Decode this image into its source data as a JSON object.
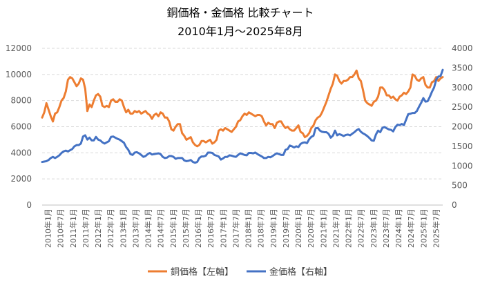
{
  "chart_data": {
    "type": "line",
    "title_line1": "銅価格・金価格 比較チャート",
    "title_line2": "2010年1月～2025年8月",
    "y_left": {
      "min": 0,
      "max": 12000,
      "ticks": [
        0,
        2000,
        4000,
        6000,
        8000,
        10000,
        12000
      ]
    },
    "y_right": {
      "min": 0,
      "max": 4000,
      "ticks": [
        0,
        500,
        1000,
        1500,
        2000,
        2500,
        3000,
        3500,
        4000
      ]
    },
    "x_labels": [
      "2010年1月",
      "2010年7月",
      "2011年1月",
      "2011年7月",
      "2012年1月",
      "2012年7月",
      "2013年1月",
      "2013年7月",
      "2014年1月",
      "2014年7月",
      "2015年1月",
      "2015年7月",
      "2016年1月",
      "2016年7月",
      "2017年1月",
      "2017年7月",
      "2018年1月",
      "2018年7月",
      "2019年1月",
      "2019年7月",
      "2020年1月",
      "2020年7月",
      "2021年1月",
      "2021年7月",
      "2022年1月",
      "2022年7月",
      "2023年1月",
      "2023年7月",
      "2024年1月",
      "2024年7月",
      "2025年1月",
      "2025年7月"
    ],
    "grid": true,
    "legend_position": "bottom",
    "series": [
      {
        "name": "銅価格【左軸】",
        "axis": "left",
        "color": "#ED7D31",
        "values": [
          6700,
          7100,
          7800,
          7300,
          6800,
          6400,
          7000,
          7100,
          7500,
          8000,
          8200,
          8700,
          9600,
          9800,
          9700,
          9400,
          9100,
          9300,
          9700,
          9600,
          8900,
          7200,
          7700,
          7500,
          8000,
          8400,
          8500,
          8300,
          7600,
          7500,
          7600,
          7500,
          8000,
          8100,
          7900,
          7900,
          8100,
          8000,
          7500,
          7100,
          7300,
          7000,
          7000,
          7200,
          7100,
          7200,
          7000,
          7100,
          7200,
          7000,
          6900,
          6600,
          6900,
          7000,
          6800,
          7100,
          7000,
          6700,
          6700,
          6400,
          5800,
          5700,
          6000,
          6200,
          6200,
          5500,
          5300,
          5000,
          5100,
          5200,
          4800,
          4600,
          4500,
          4600,
          4900,
          4900,
          4800,
          4900,
          5000,
          4700,
          4800,
          5000,
          5700,
          5800,
          5700,
          5900,
          5800,
          5700,
          5600,
          5800,
          6000,
          6400,
          6500,
          6800,
          7000,
          6900,
          7100,
          7000,
          6900,
          6800,
          6900,
          6900,
          6800,
          6400,
          6100,
          6300,
          6200,
          6200,
          5900,
          6300,
          6400,
          6400,
          6100,
          5900,
          6000,
          5800,
          5700,
          5700,
          5900,
          6100,
          5600,
          5500,
          5200,
          5300,
          5500,
          5900,
          6100,
          6500,
          6700,
          6800,
          7100,
          7500,
          7900,
          8400,
          8900,
          9300,
          10000,
          9900,
          9500,
          9300,
          9500,
          9500,
          9600,
          9800,
          9800,
          10000,
          10300,
          9700,
          9500,
          8800,
          8000,
          7800,
          7700,
          7600,
          7900,
          8000,
          8300,
          9000,
          9000,
          8800,
          8400,
          8400,
          8200,
          8300,
          8100,
          8000,
          8300,
          8400,
          8600,
          8500,
          8700,
          9000,
          10000,
          9900,
          9600,
          9500,
          9700,
          9800,
          9200,
          9000,
          9000,
          9400,
          9500,
          9800,
          9500,
          9700,
          9800
        ]
      },
      {
        "name": "金価格【右軸】",
        "axis": "right",
        "color": "#4472C4",
        "values": [
          1100,
          1110,
          1120,
          1150,
          1200,
          1230,
          1200,
          1230,
          1270,
          1330,
          1370,
          1390,
          1370,
          1400,
          1430,
          1500,
          1530,
          1530,
          1570,
          1750,
          1780,
          1670,
          1720,
          1650,
          1650,
          1740,
          1670,
          1650,
          1600,
          1570,
          1600,
          1630,
          1740,
          1750,
          1720,
          1690,
          1670,
          1630,
          1590,
          1480,
          1410,
          1300,
          1280,
          1340,
          1350,
          1320,
          1280,
          1230,
          1250,
          1300,
          1330,
          1290,
          1300,
          1310,
          1320,
          1300,
          1230,
          1200,
          1210,
          1250,
          1250,
          1230,
          1180,
          1200,
          1200,
          1200,
          1140,
          1120,
          1130,
          1150,
          1100,
          1080,
          1100,
          1200,
          1240,
          1240,
          1260,
          1340,
          1340,
          1330,
          1280,
          1260,
          1240,
          1160,
          1190,
          1230,
          1230,
          1270,
          1260,
          1240,
          1230,
          1280,
          1320,
          1300,
          1280,
          1270,
          1330,
          1330,
          1320,
          1340,
          1300,
          1270,
          1240,
          1200,
          1200,
          1230,
          1220,
          1250,
          1290,
          1320,
          1300,
          1280,
          1280,
          1410,
          1430,
          1520,
          1500,
          1470,
          1500,
          1480,
          1560,
          1590,
          1600,
          1580,
          1680,
          1740,
          1770,
          1960,
          1970,
          1900,
          1870,
          1860,
          1860,
          1820,
          1720,
          1770,
          1900,
          1780,
          1810,
          1790,
          1760,
          1790,
          1800,
          1780,
          1820,
          1860,
          1910,
          1940,
          1870,
          1830,
          1800,
          1760,
          1710,
          1650,
          1640,
          1800,
          1900,
          1860,
          1970,
          1990,
          1960,
          1930,
          1920,
          1880,
          1990,
          2050,
          2040,
          2070,
          2040,
          2180,
          2320,
          2330,
          2350,
          2350,
          2400,
          2510,
          2610,
          2730,
          2640,
          2650,
          2760,
          2890,
          3000,
          3200,
          3280,
          3290,
          3450
        ]
      }
    ]
  }
}
